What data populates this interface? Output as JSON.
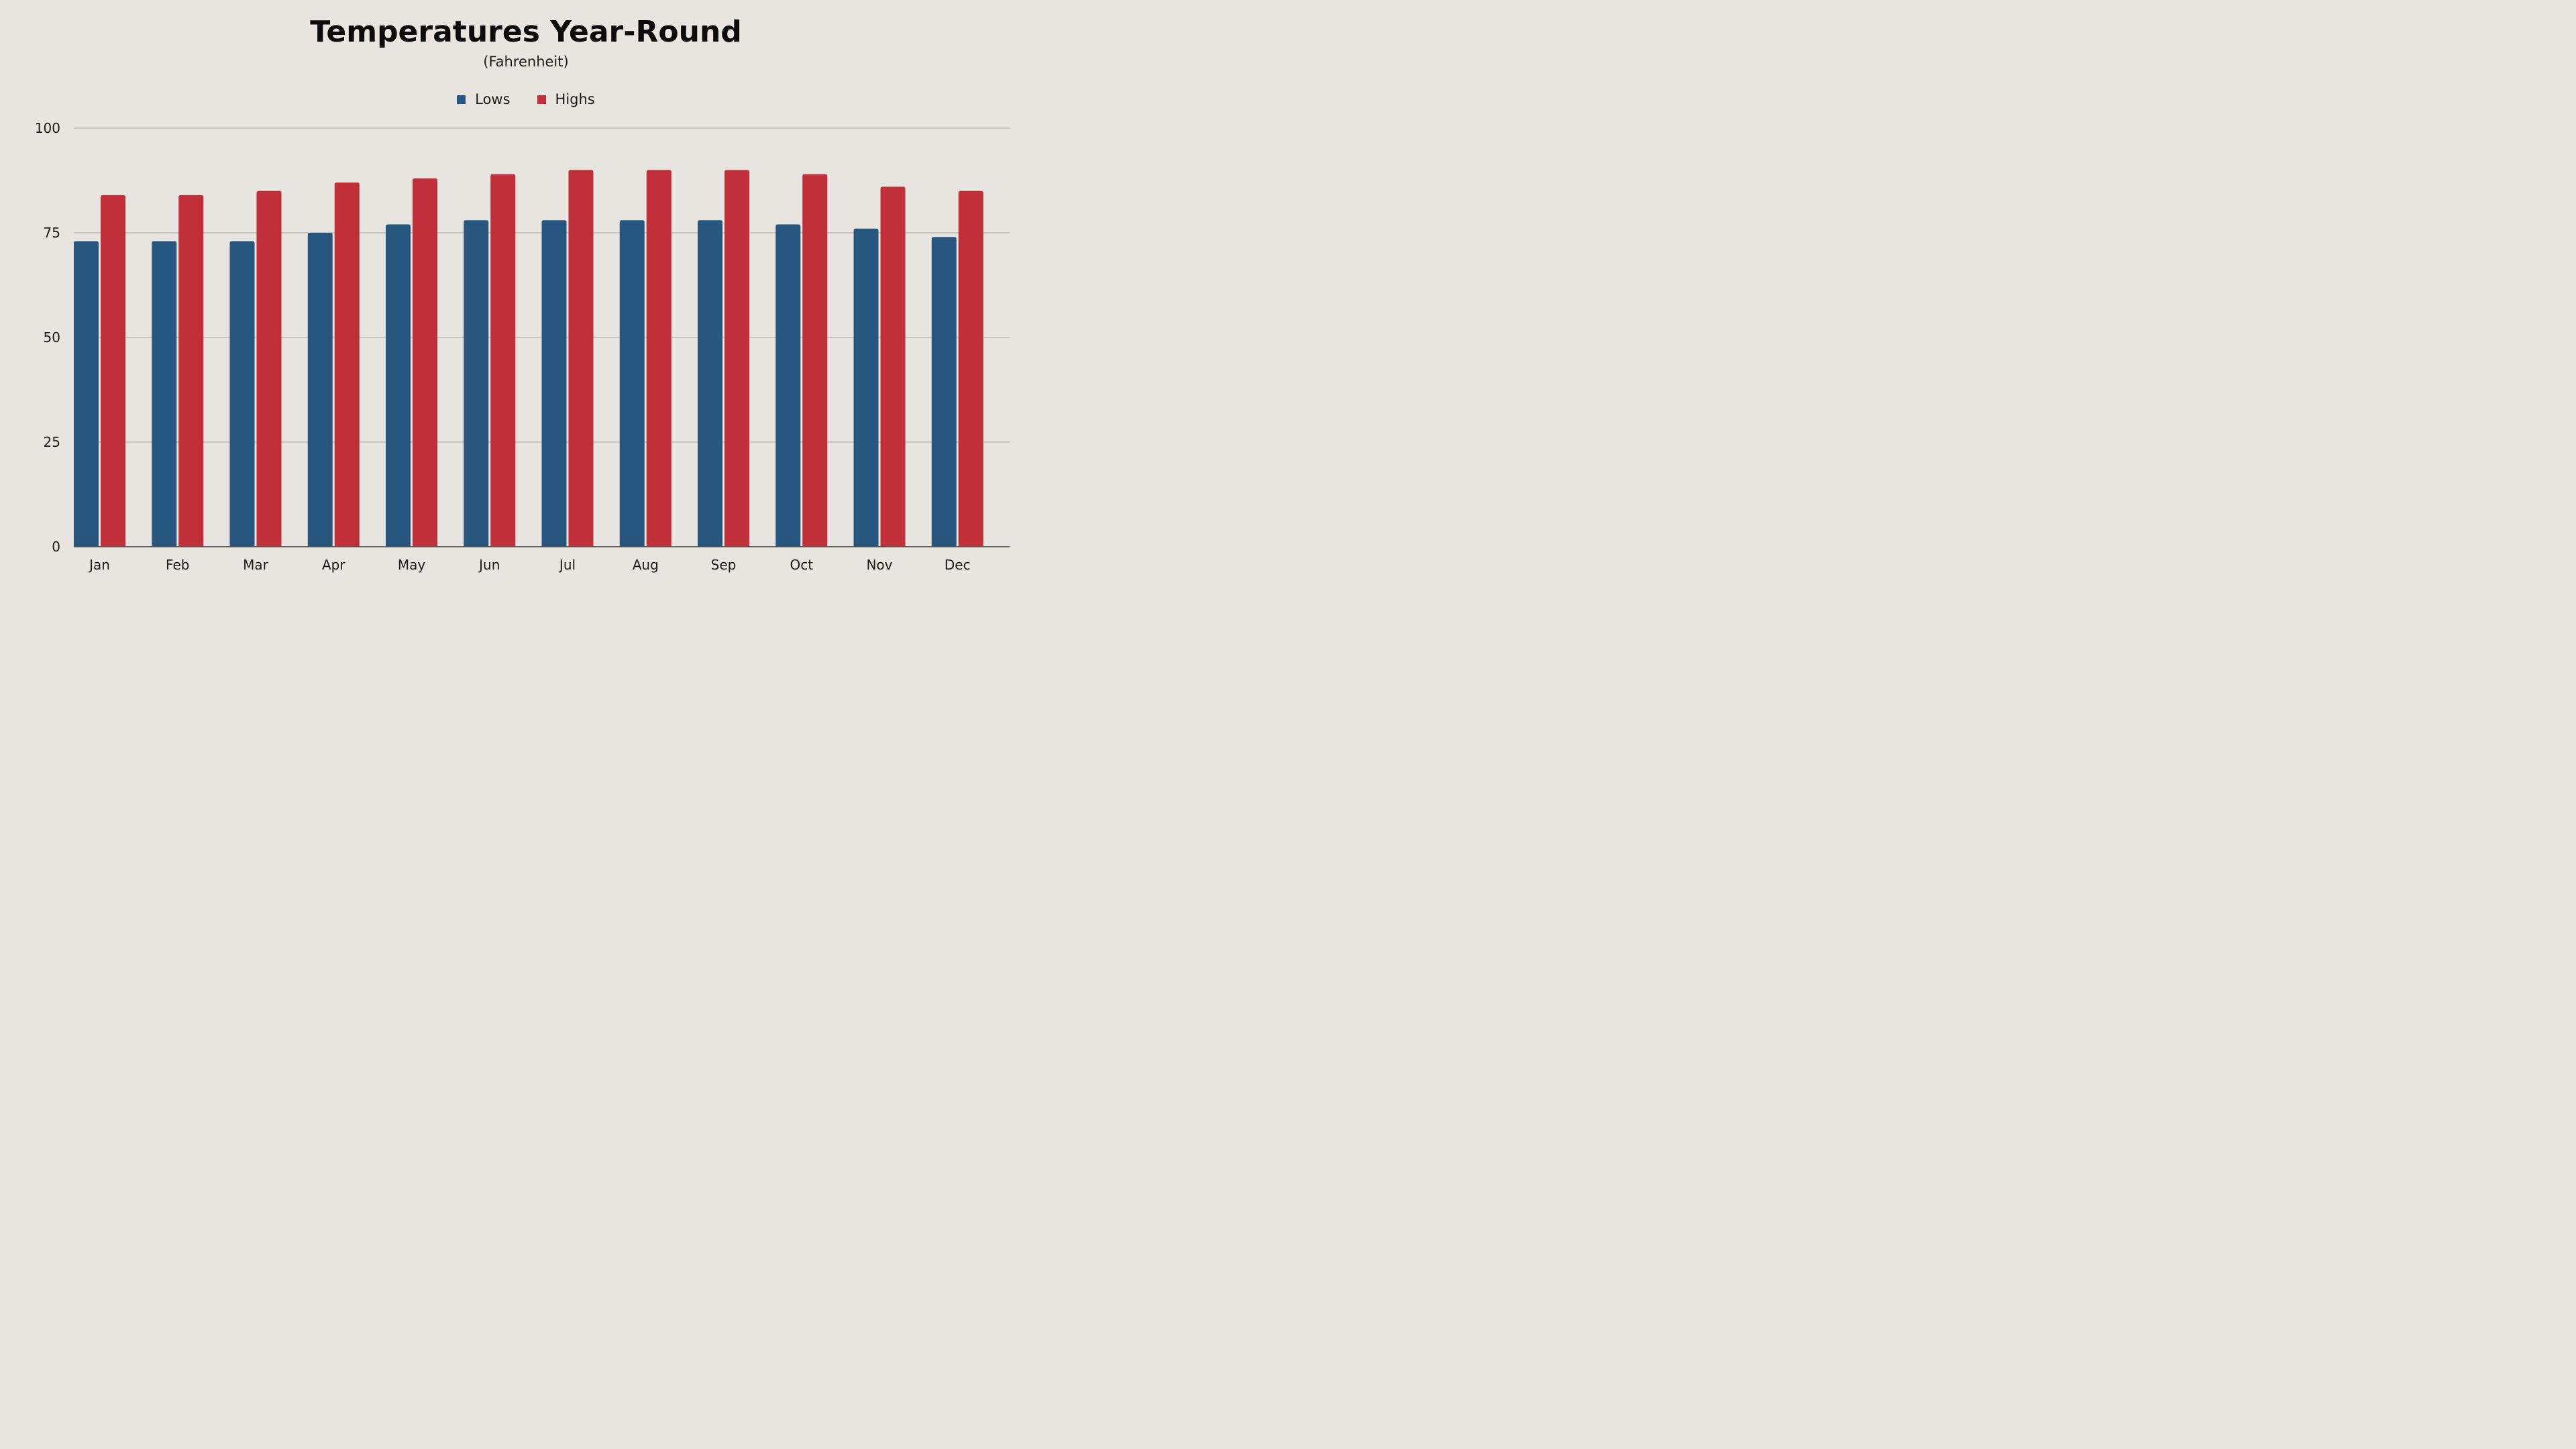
{
  "chart_data": {
    "type": "bar",
    "title": "Temperatures Year-Round",
    "subtitle": "(Fahrenheit)",
    "xlabel": "",
    "ylabel": "",
    "categories": [
      "Jan",
      "Feb",
      "Mar",
      "Apr",
      "May",
      "Jun",
      "Jul",
      "Aug",
      "Sep",
      "Oct",
      "Nov",
      "Dec"
    ],
    "series": [
      {
        "name": "Lows",
        "color": "#27567f",
        "values": [
          73,
          73,
          73,
          75,
          77,
          78,
          78,
          78,
          78,
          77,
          76,
          74
        ]
      },
      {
        "name": "Highs",
        "color": "#c13038",
        "values": [
          84,
          84,
          85,
          87,
          88,
          89,
          90,
          90,
          90,
          89,
          86,
          85
        ]
      }
    ],
    "ylim": [
      0,
      100
    ],
    "yticks": [
      "0",
      "25",
      "50",
      "75",
      "100"
    ],
    "grid": true,
    "legend_position": "top-center"
  },
  "style": {
    "background": "#e8e4df",
    "grid_color": "#a8a5a1",
    "axis_color": "#555555"
  }
}
